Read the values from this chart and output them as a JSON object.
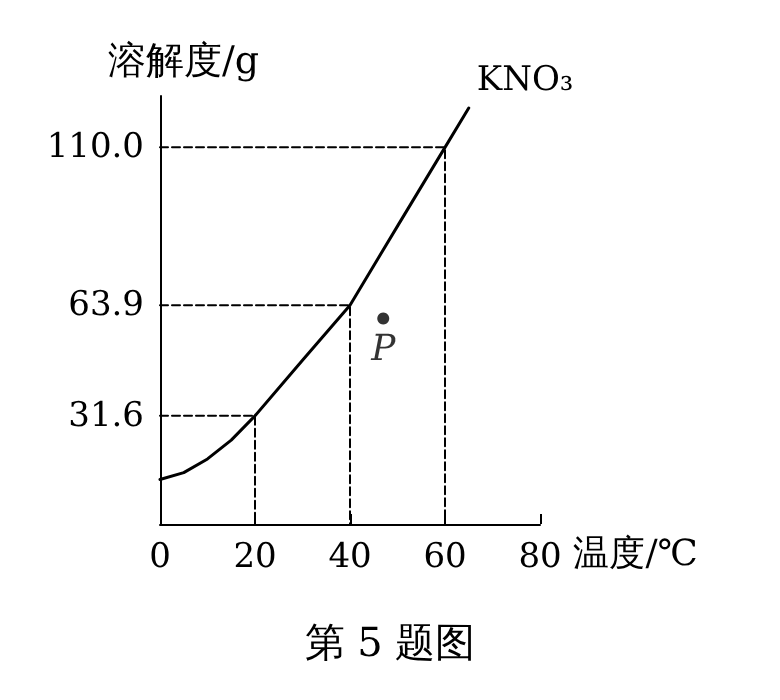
{
  "chart_data": {
    "type": "line",
    "title": "第 5 题图",
    "xlabel": "温度/℃",
    "ylabel": "溶解度/g",
    "xlim": [
      0,
      80
    ],
    "xticks": [
      0,
      20,
      40,
      60,
      80
    ],
    "ylim": [
      0,
      125
    ],
    "yticks": [
      {
        "value": 31.6,
        "label": "31.6"
      },
      {
        "value": 63.9,
        "label": "63.9"
      },
      {
        "value": 110,
        "label": "110.0"
      }
    ],
    "series": [
      {
        "name": "KNO₃",
        "color": "#000000",
        "x": [
          0,
          5,
          10,
          15,
          20,
          30,
          40,
          50,
          60,
          65
        ],
        "values": [
          13,
          15,
          19,
          24.5,
          31.6,
          47.8,
          63.9,
          87,
          110,
          121.5
        ]
      },
      {
        "color": "#000000",
        "line_style": "dashed",
        "x": [
          0,
          20,
          20
        ],
        "values": [
          31.6,
          31.6,
          0
        ]
      },
      {
        "color": "#000000",
        "line_style": "dashed",
        "x": [
          0,
          40,
          40
        ],
        "values": [
          63.9,
          63.9,
          0
        ]
      },
      {
        "color": "#000000",
        "line_style": "dashed",
        "x": [
          0,
          60,
          60
        ],
        "values": [
          110,
          110,
          0
        ]
      },
      {
        "type": "scatter",
        "marker": "circle",
        "color": "#000000",
        "x": [
          47
        ],
        "values": [
          60
        ]
      }
    ],
    "annotations": [
      {
        "text": "P",
        "x": 47,
        "y": 60
      }
    ],
    "grid": false,
    "legend": false,
    "marker": "none",
    "line_style": "solid"
  }
}
